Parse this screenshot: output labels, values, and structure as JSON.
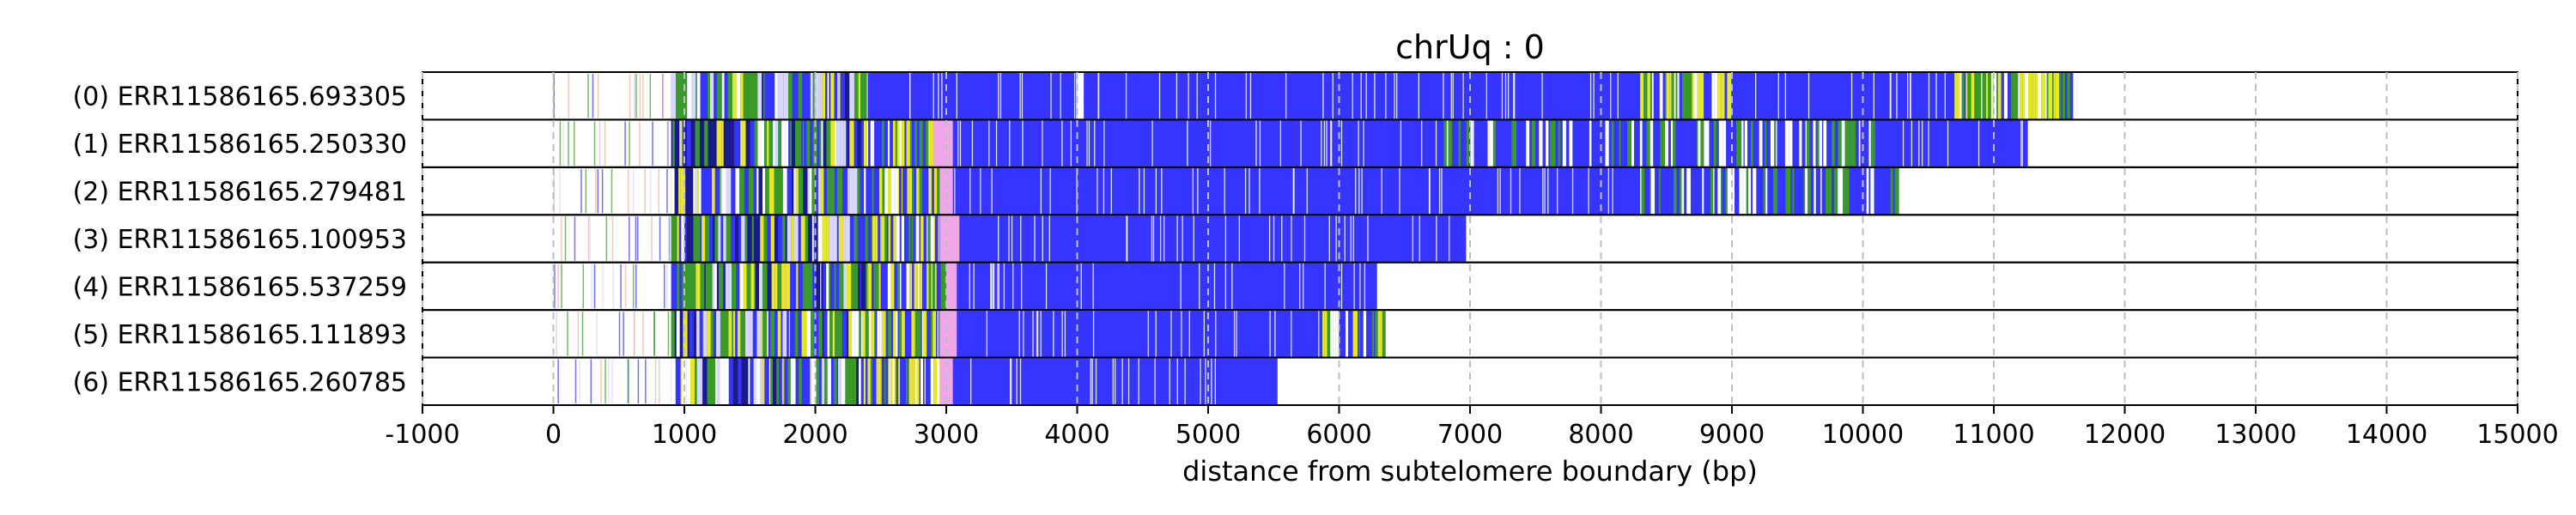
{
  "chart_data": {
    "type": "track-plot",
    "title": "chrUq : 0",
    "xlabel": "distance from subtelomere boundary (bp)",
    "ylabel": "",
    "xlim": [
      -1000,
      15000
    ],
    "xticks": [
      -1000,
      0,
      1000,
      2000,
      3000,
      4000,
      5000,
      6000,
      7000,
      8000,
      9000,
      10000,
      11000,
      12000,
      13000,
      14000,
      15000
    ],
    "grid": {
      "x": true,
      "style": "dashed"
    },
    "colors": {
      "blue": "#3535ff",
      "green": "#3a9b28",
      "yellow": "#e8e826",
      "pink": "#f2a6ea",
      "light": "#d8d8ff",
      "frame": "#000000"
    },
    "reads": [
      {
        "label": "(0) ERR11586165.693305",
        "start": 0,
        "end": 11640
      },
      {
        "label": "(1) ERR11586165.250330",
        "start": 0,
        "end": 11260
      },
      {
        "label": "(2) ERR11586165.279481",
        "start": 0,
        "end": 10270
      },
      {
        "label": "(3) ERR11586165.100953",
        "start": 0,
        "end": 6970
      },
      {
        "label": "(4) ERR11586165.537259",
        "start": 0,
        "end": 6290
      },
      {
        "label": "(5) ERR11586165.111893",
        "start": 0,
        "end": 6360
      },
      {
        "label": "(6) ERR11586165.260785",
        "start": 0,
        "end": 5530
      }
    ],
    "segments": [
      [
        {
          "from": 900,
          "to": 2400,
          "color": "mixed"
        },
        {
          "from": 2400,
          "to": 4000,
          "color": "blue"
        },
        {
          "from": 4000,
          "to": 4050,
          "color": "yellow"
        },
        {
          "from": 4050,
          "to": 8300,
          "color": "blue"
        },
        {
          "from": 8300,
          "to": 9000,
          "color": "green-mix"
        },
        {
          "from": 9000,
          "to": 10700,
          "color": "blue"
        },
        {
          "from": 10700,
          "to": 11640,
          "color": "green-mix"
        }
      ],
      [
        {
          "from": 900,
          "to": 2350,
          "color": "mixed"
        },
        {
          "from": 2350,
          "to": 2900,
          "color": "yellow-mix"
        },
        {
          "from": 2900,
          "to": 3050,
          "color": "pink"
        },
        {
          "from": 3050,
          "to": 6800,
          "color": "blue"
        },
        {
          "from": 6800,
          "to": 10200,
          "color": "blue-green"
        },
        {
          "from": 10200,
          "to": 11260,
          "color": "blue"
        }
      ],
      [
        {
          "from": 900,
          "to": 2350,
          "color": "mixed"
        },
        {
          "from": 2350,
          "to": 2950,
          "color": "yellow-mix"
        },
        {
          "from": 2950,
          "to": 3050,
          "color": "pink"
        },
        {
          "from": 3050,
          "to": 8300,
          "color": "blue"
        },
        {
          "from": 8300,
          "to": 10270,
          "color": "blue-green"
        }
      ],
      [
        {
          "from": 900,
          "to": 2300,
          "color": "mixed"
        },
        {
          "from": 2300,
          "to": 2950,
          "color": "yellow-mix"
        },
        {
          "from": 2950,
          "to": 3100,
          "color": "pink"
        },
        {
          "from": 3100,
          "to": 6970,
          "color": "blue"
        }
      ],
      [
        {
          "from": 900,
          "to": 2400,
          "color": "mixed"
        },
        {
          "from": 2400,
          "to": 3000,
          "color": "yellow-mix"
        },
        {
          "from": 3000,
          "to": 3080,
          "color": "pink"
        },
        {
          "from": 3080,
          "to": 6290,
          "color": "blue"
        }
      ],
      [
        {
          "from": 900,
          "to": 2350,
          "color": "mixed"
        },
        {
          "from": 2350,
          "to": 2950,
          "color": "yellow-mix"
        },
        {
          "from": 2950,
          "to": 3080,
          "color": "pink"
        },
        {
          "from": 3080,
          "to": 5850,
          "color": "blue"
        },
        {
          "from": 5850,
          "to": 6360,
          "color": "yellow-mix"
        }
      ],
      [
        {
          "from": 900,
          "to": 2350,
          "color": "mixed"
        },
        {
          "from": 2350,
          "to": 2950,
          "color": "yellow-mix"
        },
        {
          "from": 2950,
          "to": 3050,
          "color": "pink"
        },
        {
          "from": 3050,
          "to": 5530,
          "color": "blue"
        }
      ]
    ]
  }
}
